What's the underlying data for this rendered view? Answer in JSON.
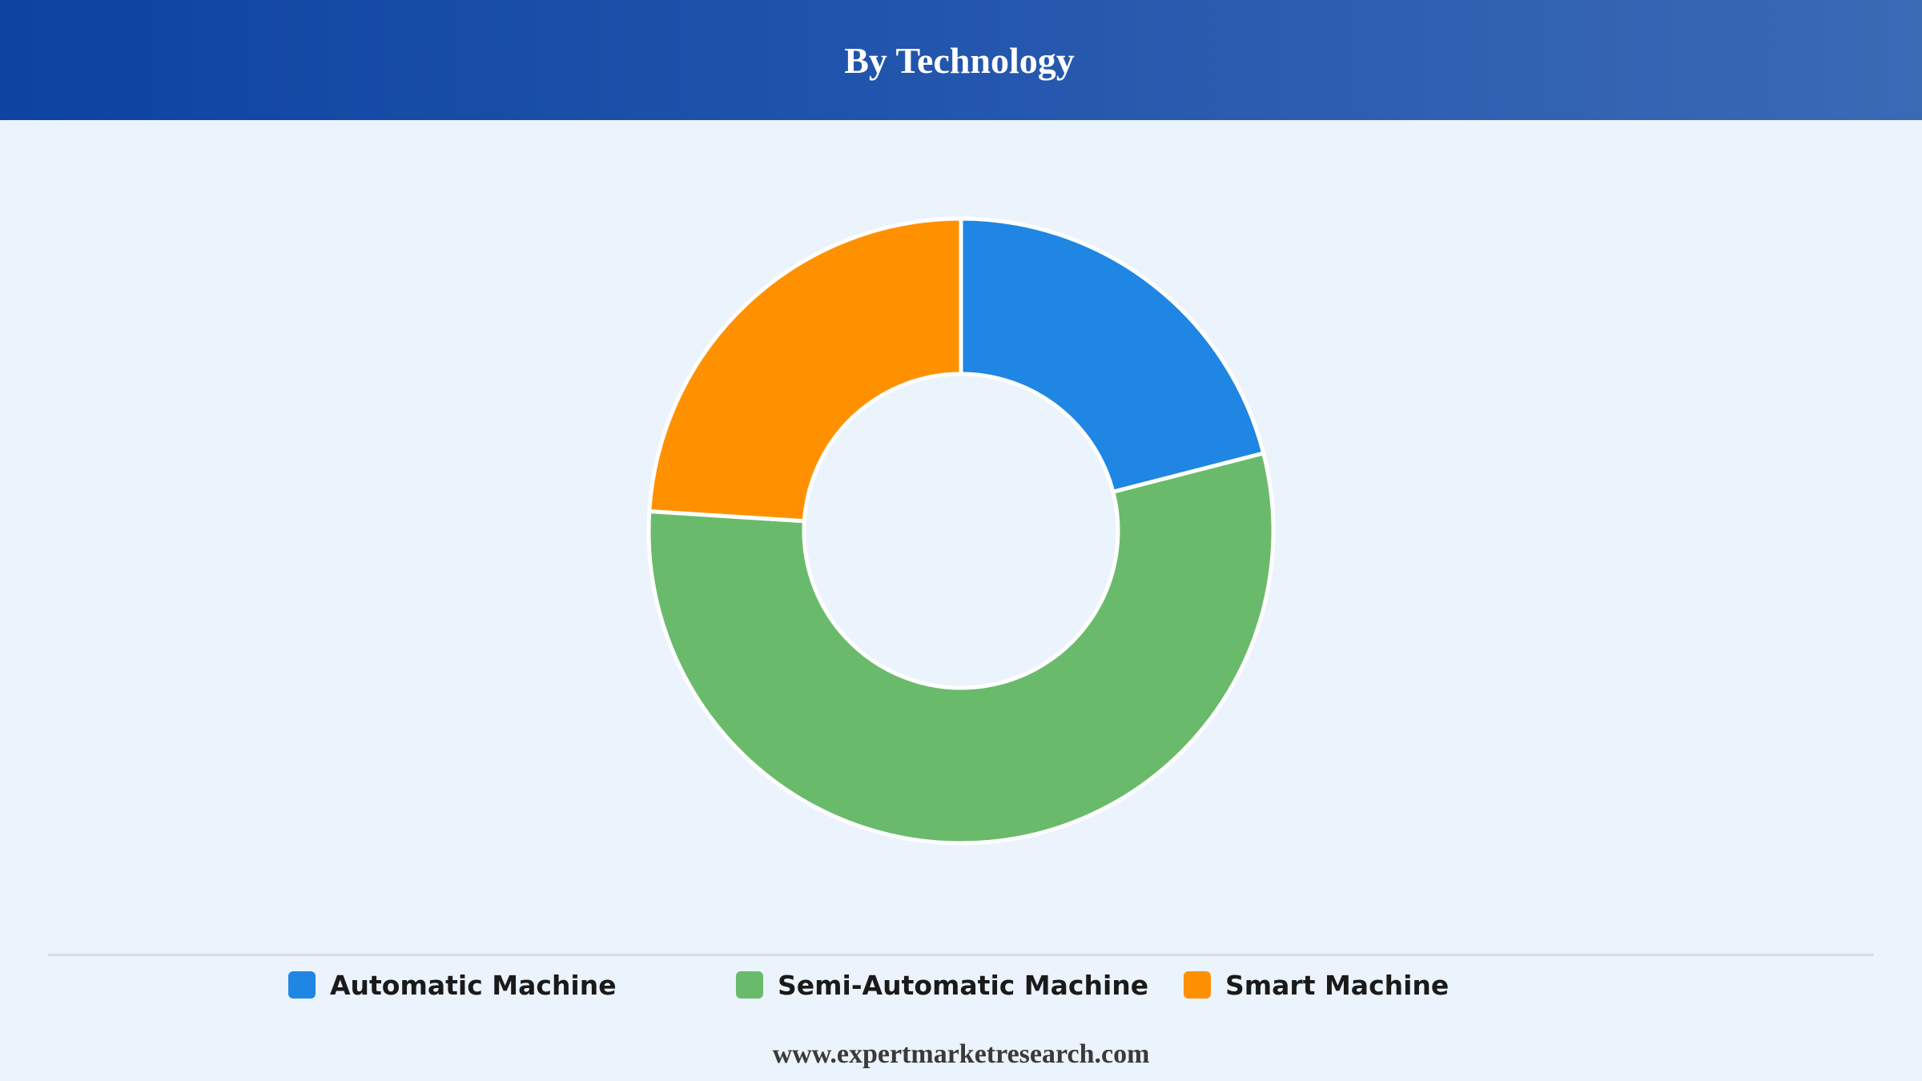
{
  "header": {
    "title": "By Technology"
  },
  "chart_data": {
    "type": "pie",
    "variant": "donut",
    "title": "By Technology",
    "categories": [
      "Automatic Machine",
      "Semi-Automatic Machine",
      "Smart Machine"
    ],
    "values": [
      21,
      55,
      24
    ],
    "colors": [
      "#1f86e3",
      "#69bb6b",
      "#ff9100"
    ],
    "legend_position": "bottom"
  },
  "legend": {
    "items": [
      {
        "label": "Automatic Machine",
        "color": "#1f86e3"
      },
      {
        "label": "Semi-Automatic Machine",
        "color": "#69bb6b"
      },
      {
        "label": "Smart Machine",
        "color": "#ff9100"
      }
    ]
  },
  "footer": {
    "source": "www.expertmarketresearch.com"
  }
}
